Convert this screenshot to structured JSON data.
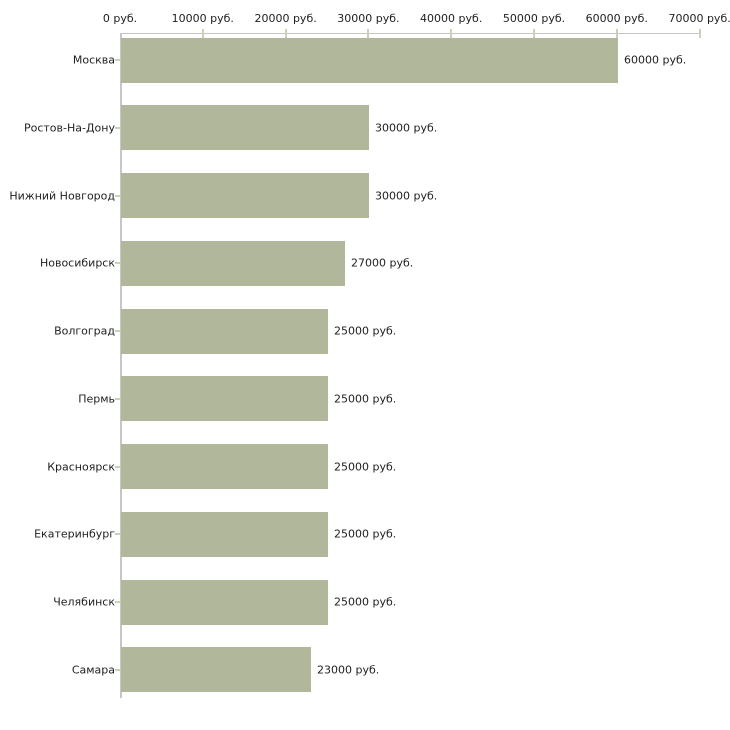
{
  "chart_data": {
    "type": "bar",
    "orientation": "horizontal",
    "title": "",
    "xlabel": "",
    "ylabel": "",
    "categories": [
      "Москва",
      "Ростов-На-Дону",
      "Нижний Новгород",
      "Новосибирск",
      "Волгоград",
      "Пермь",
      "Красноярск",
      "Екатеринбург",
      "Челябинск",
      "Самара"
    ],
    "values": [
      60000,
      30000,
      30000,
      27000,
      25000,
      25000,
      25000,
      25000,
      25000,
      23000
    ],
    "value_labels": [
      "60000 руб.",
      "30000 руб.",
      "30000 руб.",
      "27000 руб.",
      "25000 руб.",
      "25000 руб.",
      "25000 руб.",
      "25000 руб.",
      "25000 руб.",
      "23000 руб."
    ],
    "x_ticks": [
      0,
      10000,
      20000,
      30000,
      40000,
      50000,
      60000,
      70000
    ],
    "x_tick_labels": [
      "0 руб.",
      "10000 руб.",
      "20000 руб.",
      "30000 руб.",
      "40000 руб.",
      "50000 руб.",
      "60000 руб.",
      "70000 руб."
    ],
    "xlim": [
      0,
      70000
    ],
    "grid": false,
    "legend": false,
    "colors": {
      "bar_fill": "#b1b79a",
      "axis_line": "#c6c6c6",
      "tick_mark": "#ccd0b6",
      "text": "#1f1f1f",
      "background": "#ffffff"
    }
  }
}
